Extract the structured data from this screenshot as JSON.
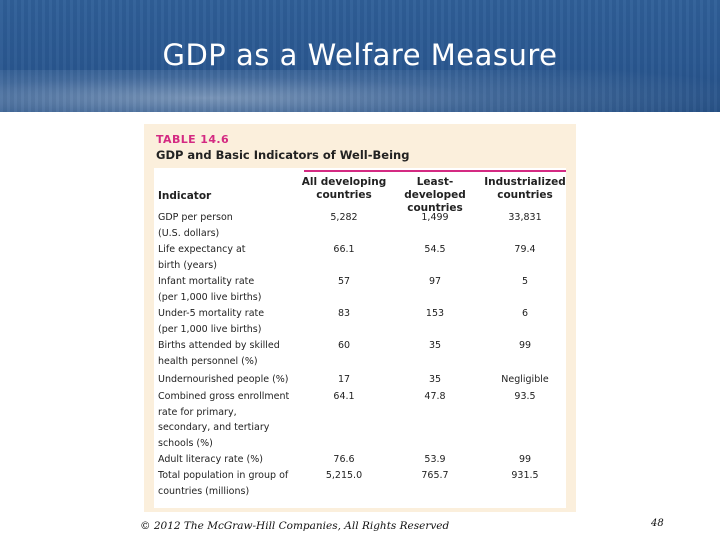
{
  "slide": {
    "title": "GDP as a Welfare Measure"
  },
  "table": {
    "number": "TABLE 14.6",
    "title": "GDP and Basic Indicators of Well-Being",
    "headers": {
      "indicator": "Indicator",
      "developing": "All developing\ncountries",
      "least": "Least-developed\ncountries",
      "industrialized": "Industrialized\ncountries"
    },
    "rows": [
      {
        "label": "GDP per person\n   (U.S. dollars)",
        "developing": "5,282",
        "least": "1,499",
        "industrialized": "33,831"
      },
      {
        "label": "Life expectancy at\n   birth (years)",
        "developing": "66.1",
        "least": "54.5",
        "industrialized": "79.4"
      },
      {
        "label": "Infant mortality rate\n   (per 1,000 live births)",
        "developing": "57",
        "least": "97",
        "industrialized": "5"
      },
      {
        "label": "Under-5 mortality rate\n   (per 1,000 live births)",
        "developing": "83",
        "least": "153",
        "industrialized": "6"
      },
      {
        "label": "Births attended by skilled\n   health personnel (%)",
        "developing": "60",
        "least": "35",
        "industrialized": "99"
      },
      {
        "label": "Undernourished people (%)",
        "developing": "17",
        "least": "35",
        "industrialized": "Negligible"
      },
      {
        "label": "Combined gross enrollment\n   rate for primary,\n   secondary, and tertiary\n   schools (%)",
        "developing": "64.1",
        "least": "47.8",
        "industrialized": "93.5"
      },
      {
        "label": "Adult literacy rate (%)",
        "developing": "76.6",
        "least": "53.9",
        "industrialized": "99"
      },
      {
        "label": "Total population in group of\n   countries (millions)",
        "developing": "5,215.0",
        "least": "765.7",
        "industrialized": "931.5"
      }
    ]
  },
  "footer": {
    "copyright": "© 2012 The McGraw-Hill Companies, All Rights Reserved",
    "page": "48"
  }
}
